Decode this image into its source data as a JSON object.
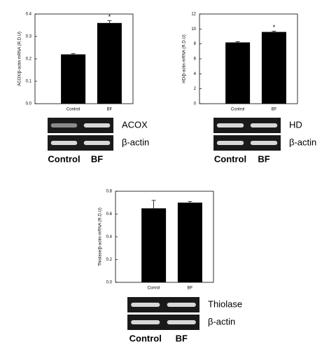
{
  "chart_data": [
    {
      "type": "bar",
      "ylabel": "ACOX/β-actin mRNA (R.D.U)",
      "categories": [
        "Control",
        "BF"
      ],
      "values": [
        0.22,
        0.36
      ],
      "errors": [
        0.003,
        0.01
      ],
      "significance": [
        null,
        "*"
      ],
      "color": "#000000",
      "ylim": [
        0,
        0.4
      ],
      "yticks": [
        {
          "value": 0,
          "label": "0.0"
        },
        0.1,
        0.2,
        0.3,
        0.4
      ],
      "gel": {
        "bands": [
          "ACOX",
          "β-actin"
        ],
        "lanes": [
          "Control",
          "BF"
        ]
      }
    },
    {
      "type": "bar",
      "ylabel": "HD/β-actin mRNA (R.D.U)",
      "categories": [
        "Control",
        "BF"
      ],
      "values": [
        8.2,
        9.6
      ],
      "errors": [
        0.1,
        0.1
      ],
      "significance": [
        null,
        "*"
      ],
      "color": "#000000",
      "ylim": [
        0,
        12
      ],
      "yticks": [
        0,
        2,
        4,
        6,
        8,
        10,
        12
      ],
      "gel": {
        "bands": [
          "HD",
          "β-actin"
        ],
        "lanes": [
          "Control",
          "BF"
        ]
      }
    },
    {
      "type": "bar",
      "ylabel": "Thiolase/β-actin mRNA (R.D.U)",
      "categories": [
        "Conrol",
        "BF"
      ],
      "values": [
        0.65,
        0.7
      ],
      "errors": [
        0.07,
        0.01
      ],
      "significance": [
        null,
        null
      ],
      "color": "#000000",
      "ylim": [
        0,
        0.8
      ],
      "yticks": [
        {
          "value": 0,
          "label": "0.0"
        },
        0.2,
        0.4,
        0.6,
        0.8
      ],
      "gel": {
        "bands": [
          "Thiolase",
          "β-actin"
        ],
        "lanes": [
          "Control",
          "BF"
        ]
      }
    }
  ]
}
